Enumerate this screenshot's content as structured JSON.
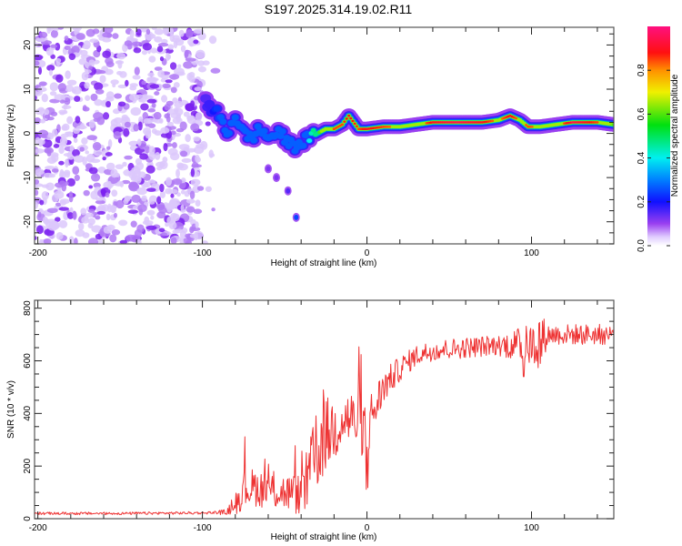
{
  "title": "S197.2025.314.19.02.R11",
  "colors": {
    "snr_line": "#ee3333",
    "noise_purple": "#8a2be2"
  },
  "chart_data": [
    {
      "type": "heatmap",
      "name": "spectrogram",
      "title": "S197.2025.314.19.02.R11",
      "xlabel": "Height of straight line (km)",
      "ylabel": "Frequency (Hz)",
      "xlim": [
        -202,
        150
      ],
      "ylim": [
        -25,
        24
      ],
      "xticks": [
        -200,
        -100,
        0,
        100
      ],
      "xtick_labels": [
        "-200",
        "-100",
        "0",
        "100"
      ],
      "yticks": [
        -20,
        -10,
        0,
        10,
        20
      ],
      "ytick_labels": [
        "-20",
        "-10",
        "0",
        "10",
        "20"
      ],
      "colorbar": {
        "label": "Normalized spectral amplitude",
        "range": [
          0,
          1
        ],
        "ticks": [
          0.0,
          0.2,
          0.4,
          0.6,
          0.8
        ],
        "tick_labels": [
          "0.0",
          "0.2",
          "0.4",
          "0.6",
          "0.8"
        ],
        "colormap": [
          "#ffffff",
          "#e8d8ff",
          "#8a2be2",
          "#0000ff",
          "#00e5ff",
          "#00e000",
          "#ffff00",
          "#ff8800",
          "#ff0000",
          "#ff1080"
        ]
      },
      "noise_region": {
        "x_from": -202,
        "x_to": -100,
        "freq_range": [
          -25,
          24
        ],
        "amplitude": 0.1
      },
      "signal_track": [
        {
          "x": -98,
          "f": 7,
          "a": 0.15
        },
        {
          "x": -90,
          "f": 4,
          "a": 0.25
        },
        {
          "x": -85,
          "f": 0,
          "a": 0.35
        },
        {
          "x": -80,
          "f": 4,
          "a": 0.3
        },
        {
          "x": -75,
          "f": 0,
          "a": 0.3
        },
        {
          "x": -70,
          "f": -1,
          "a": 0.3
        },
        {
          "x": -65,
          "f": 1,
          "a": 0.3
        },
        {
          "x": -60,
          "f": -1,
          "a": 0.35
        },
        {
          "x": -55,
          "f": 0,
          "a": 0.35
        },
        {
          "x": -50,
          "f": -1,
          "a": 0.3
        },
        {
          "x": -45,
          "f": -3,
          "a": 0.3
        },
        {
          "x": -40,
          "f": -2,
          "a": 0.35
        },
        {
          "x": -35,
          "f": -1,
          "a": 0.4
        },
        {
          "x": -30,
          "f": 0,
          "a": 0.55
        },
        {
          "x": -25,
          "f": 1,
          "a": 0.75
        },
        {
          "x": -20,
          "f": 1,
          "a": 0.85
        },
        {
          "x": -15,
          "f": 2,
          "a": 0.85
        },
        {
          "x": -11,
          "f": 4,
          "a": 0.9
        },
        {
          "x": -5,
          "f": 1,
          "a": 0.85
        },
        {
          "x": 0,
          "f": 1,
          "a": 0.9
        },
        {
          "x": 10,
          "f": 1.5,
          "a": 0.85
        },
        {
          "x": 20,
          "f": 1.5,
          "a": 0.8
        },
        {
          "x": 30,
          "f": 2,
          "a": 0.75
        },
        {
          "x": 40,
          "f": 2.5,
          "a": 0.9
        },
        {
          "x": 55,
          "f": 2.5,
          "a": 0.95
        },
        {
          "x": 70,
          "f": 2.5,
          "a": 0.9
        },
        {
          "x": 80,
          "f": 3,
          "a": 0.8
        },
        {
          "x": 87,
          "f": 4,
          "a": 0.9
        },
        {
          "x": 93,
          "f": 3,
          "a": 0.8
        },
        {
          "x": 98,
          "f": 1.5,
          "a": 0.85
        },
        {
          "x": 105,
          "f": 1.5,
          "a": 0.8
        },
        {
          "x": 115,
          "f": 2,
          "a": 0.75
        },
        {
          "x": 125,
          "f": 2.5,
          "a": 0.95
        },
        {
          "x": 140,
          "f": 2.5,
          "a": 0.85
        },
        {
          "x": 150,
          "f": 2,
          "a": 0.6
        }
      ],
      "secondary_track": [
        {
          "x": -60,
          "f": -8,
          "a": 0.12
        },
        {
          "x": -55,
          "f": -10,
          "a": 0.12
        },
        {
          "x": -48,
          "f": -13,
          "a": 0.15
        },
        {
          "x": -43,
          "f": -19,
          "a": 0.25
        }
      ]
    },
    {
      "type": "line",
      "name": "snr",
      "xlabel": "Height of straight line (km)",
      "ylabel": "SNR (10 * v/v)",
      "xlim": [
        -202,
        150
      ],
      "ylim": [
        0,
        830
      ],
      "xticks": [
        -200,
        -100,
        0,
        100
      ],
      "xtick_labels": [
        "-200",
        "-100",
        "0",
        "100"
      ],
      "yticks": [
        0,
        200,
        400,
        600,
        800
      ],
      "ytick_labels": [
        "0",
        "200",
        "400",
        "600",
        "800"
      ],
      "series": [
        {
          "name": "SNR",
          "color": "#ee3333",
          "x": [
            -202,
            -150,
            -100,
            -85,
            -80,
            -75,
            -70,
            -60,
            -50,
            -40,
            -35,
            -30,
            -25,
            -20,
            -15,
            -10,
            -5,
            0,
            5,
            10,
            20,
            30,
            40,
            60,
            80,
            95,
            100,
            105,
            110,
            130,
            150
          ],
          "mean": [
            20,
            20,
            22,
            25,
            60,
            110,
            120,
            110,
            100,
            90,
            160,
            260,
            320,
            340,
            380,
            380,
            360,
            340,
            420,
            500,
            570,
            620,
            640,
            650,
            660,
            660,
            660,
            680,
            700,
            700,
            700
          ],
          "spread": [
            10,
            10,
            10,
            12,
            60,
            90,
            90,
            90,
            90,
            100,
            180,
            200,
            180,
            160,
            140,
            140,
            140,
            150,
            120,
            80,
            60,
            50,
            50,
            50,
            50,
            90,
            100,
            140,
            50,
            50,
            50
          ]
        }
      ]
    }
  ]
}
